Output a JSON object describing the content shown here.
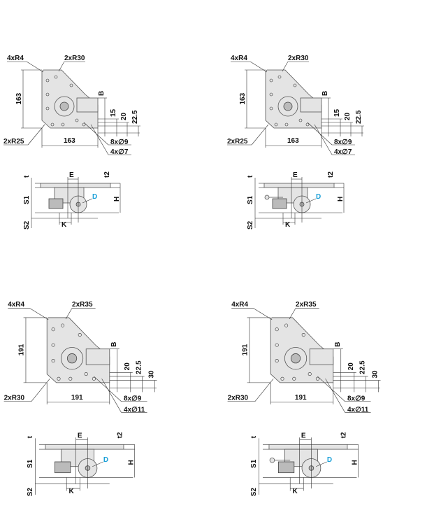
{
  "panels": [
    {
      "top": {
        "corner_radius": "4xR4",
        "large_radius": "2xR30",
        "height": "163",
        "b": "B",
        "dim1": "15",
        "dim2": "20",
        "dim3": "22.5",
        "bottom_radius": "2xR25",
        "width": "163",
        "holes1": "8x∅9",
        "holes2": "4x∅7"
      },
      "side": {
        "t": "t",
        "e": "E",
        "t2": "t2",
        "s1": "S1",
        "d": "D",
        "h": "H",
        "s2": "S2",
        "k": "K"
      }
    },
    {
      "top": {
        "corner_radius": "4xR4",
        "large_radius": "2xR30",
        "height": "163",
        "b": "B",
        "dim1": "15",
        "dim2": "20",
        "dim3": "22.5",
        "bottom_radius": "2xR25",
        "width": "163",
        "holes1": "8x∅9",
        "holes2": "4x∅7"
      },
      "side": {
        "t": "t",
        "e": "E",
        "t2": "t2",
        "s1": "S1",
        "d": "D",
        "h": "H",
        "s2": "S2",
        "k": "K"
      }
    },
    {
      "top": {
        "corner_radius": "4xR4",
        "large_radius": "2xR35",
        "height": "191",
        "b": "B",
        "dim1": "20",
        "dim2": "22.5",
        "dim3": "30",
        "bottom_radius": "2xR30",
        "width": "191",
        "holes1": "8x∅9",
        "holes2": "4x∅11"
      },
      "side": {
        "t": "t",
        "e": "E",
        "t2": "t2",
        "s1": "S1",
        "d": "D",
        "h": "H",
        "s2": "S2",
        "k": "K"
      }
    },
    {
      "top": {
        "corner_radius": "4xR4",
        "large_radius": "2xR35",
        "height": "191",
        "b": "B",
        "dim1": "20",
        "dim2": "22.5",
        "dim3": "30",
        "bottom_radius": "2xR30",
        "width": "191",
        "holes1": "8x∅9",
        "holes2": "4x∅11"
      },
      "side": {
        "t": "t",
        "e": "E",
        "t2": "t2",
        "s1": "S1",
        "d": "D",
        "h": "H",
        "s2": "S2",
        "k": "K"
      }
    }
  ]
}
